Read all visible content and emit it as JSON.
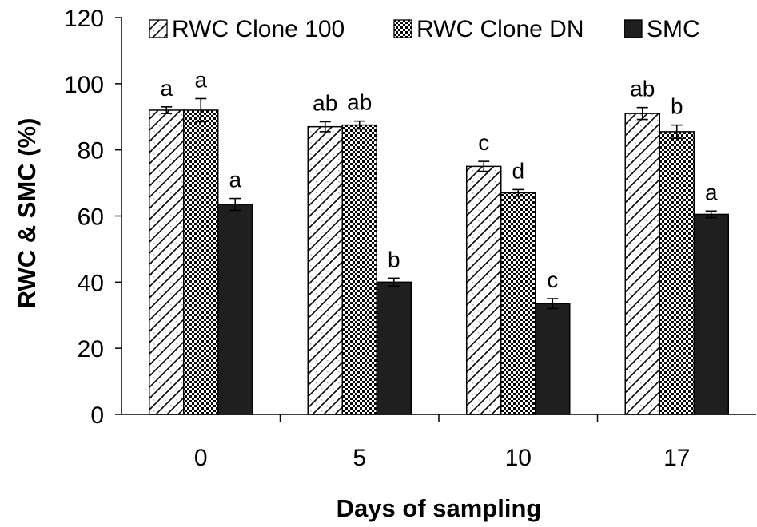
{
  "chart_data": {
    "type": "bar",
    "xlabel": "Days of sampling",
    "ylabel": "RWC & SMC (%)",
    "ylim": [
      0,
      120
    ],
    "y_ticks": [
      "0",
      "20",
      "40",
      "60",
      "80",
      "100",
      "120"
    ],
    "categories": [
      "0",
      "5",
      "10",
      "17"
    ],
    "grid": false,
    "legend_position": "top",
    "series": [
      {
        "name": "RWC Clone 100",
        "pattern": "diagonal-hatch",
        "color": "#000000",
        "values": [
          92,
          87,
          75,
          91
        ],
        "errors": [
          1,
          1.5,
          1.5,
          1.8
        ],
        "labels": [
          "a",
          "ab",
          "c",
          "ab"
        ]
      },
      {
        "name": "RWC Clone DN",
        "pattern": "checker",
        "color": "#000000",
        "values": [
          92,
          87.5,
          67,
          85.5
        ],
        "errors": [
          3.5,
          1.2,
          1,
          2
        ],
        "labels": [
          "a",
          "ab",
          "d",
          "b"
        ]
      },
      {
        "name": "SMC",
        "pattern": "solid",
        "color": "#1f1f1f",
        "values": [
          63.5,
          40,
          33.5,
          60.5
        ],
        "errors": [
          1.8,
          1.2,
          1.5,
          1
        ],
        "labels": [
          "a",
          "b",
          "c",
          "a"
        ]
      }
    ]
  }
}
